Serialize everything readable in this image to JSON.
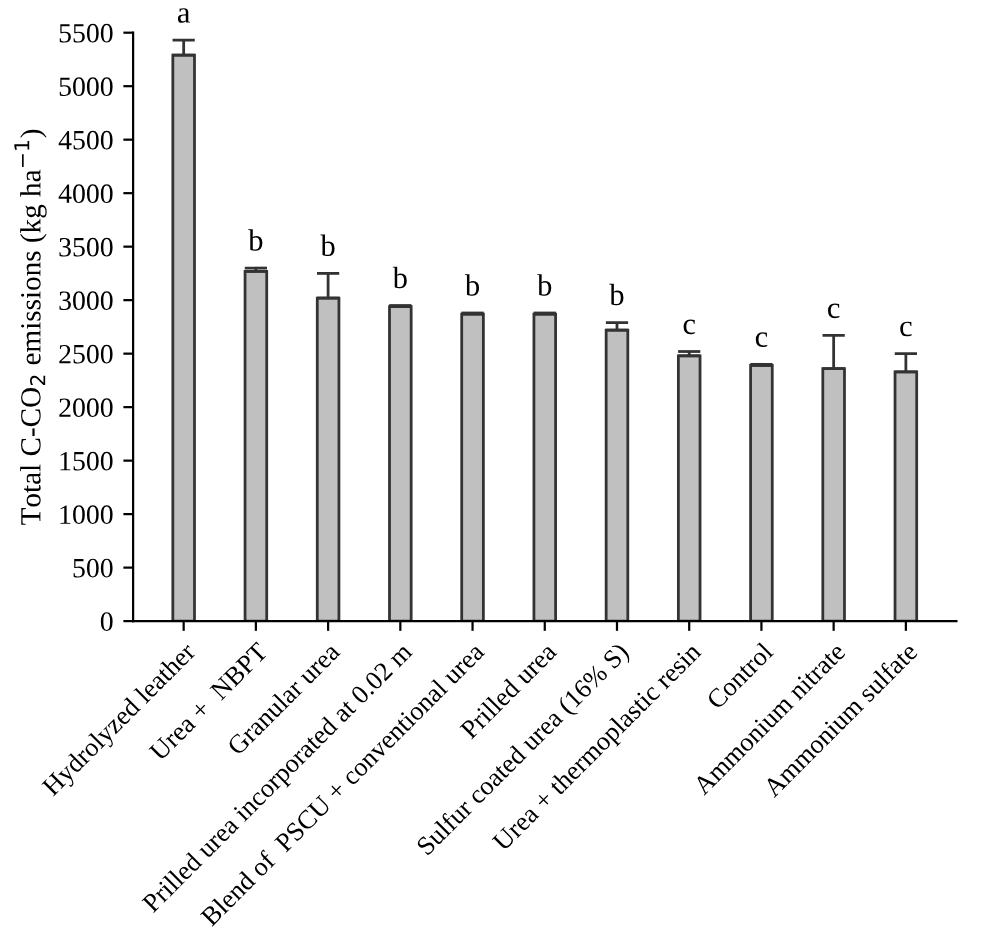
{
  "chart_data": {
    "type": "bar",
    "ylabel": "Total C-CO$_{2}$ emissions (kg ha$^{−1}$)",
    "categories": [
      "Hydrolyzed leather",
      "Urea +  NBPT",
      "Granular urea",
      "Prilled urea incorporated at 0.02 m",
      "Blend of  PSCU + conventional urea",
      "Prilled urea",
      "Sulfur coated urea (16% S)",
      "Urea + thermoplastic resin",
      "Control",
      "Ammonium nitrate",
      "Ammonium sulfate"
    ],
    "values": [
      5290,
      3270,
      3020,
      2940,
      2870,
      2870,
      2720,
      2480,
      2390,
      2360,
      2330
    ],
    "errors": [
      [
        5290,
        5430
      ],
      [
        3270,
        3300
      ],
      [
        3020,
        3250
      ],
      [
        2940,
        2950
      ],
      [
        2870,
        2880
      ],
      [
        2870,
        2880
      ],
      [
        2720,
        2790
      ],
      [
        2480,
        2520
      ],
      [
        2390,
        2400
      ],
      [
        2360,
        2670
      ],
      [
        2330,
        2500
      ]
    ],
    "color": "#c0c0c0",
    "ylim": [
      0,
      5500
    ],
    "yticks": [
      0,
      500,
      1000,
      1500,
      2000,
      2500,
      3000,
      3500,
      4000,
      4500,
      5000,
      5500
    ],
    "annotations": [
      {
        "text": "a",
        "x": "Hydrolyzed leather",
        "y": 5430
      },
      {
        "text": "b",
        "x": "Urea +  NBPT",
        "y": 3300
      },
      {
        "text": "b",
        "x": "Granular urea",
        "y": 3250
      },
      {
        "text": "b",
        "x": "Prilled urea incorporated at 0.02 m",
        "y": 2950
      },
      {
        "text": "b",
        "x": "Blend of  PSCU + conventional urea",
        "y": 2880
      },
      {
        "text": "b",
        "x": "Prilled urea",
        "y": 2880
      },
      {
        "text": "b",
        "x": "Sulfur coated urea (16% S)",
        "y": 2790
      },
      {
        "text": "c",
        "x": "Urea + thermoplastic resin",
        "y": 2520
      },
      {
        "text": "c",
        "x": "Control",
        "y": 2400
      },
      {
        "text": "c",
        "x": "Ammonium nitrate",
        "y": 2670
      },
      {
        "text": "c",
        "x": "Ammonium sulfate",
        "y": 2500
      }
    ]
  }
}
